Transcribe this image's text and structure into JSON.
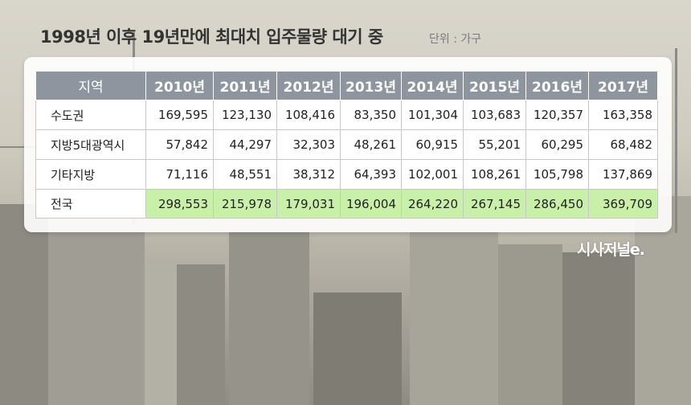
{
  "header": {
    "title": "1998년 이후 19년만에 최대치 입주물량 대기 중",
    "unit": "단위 : 가구"
  },
  "logo": {
    "text": "시사저널e."
  },
  "chart_data": {
    "type": "table",
    "title": "1998년 이후 19년만에 최대치 입주물량 대기 중",
    "unit_label": "단위 : 가구",
    "corner_header": "지역",
    "columns": [
      "2010년",
      "2011년",
      "2012년",
      "2013년",
      "2014년",
      "2015년",
      "2016년",
      "2017년"
    ],
    "rows": [
      {
        "label": "수도권",
        "values": [
          "169,595",
          "123,130",
          "108,416",
          "83,350",
          "101,304",
          "103,683",
          "120,357",
          "163,358"
        ]
      },
      {
        "label": "지방5대광역시",
        "values": [
          "57,842",
          "44,297",
          "32,303",
          "48,261",
          "60,915",
          "55,201",
          "60,295",
          "68,482"
        ]
      },
      {
        "label": "기타지방",
        "values": [
          "71,116",
          "48,551",
          "38,312",
          "64,393",
          "102,001",
          "108,261",
          "105,798",
          "137,869"
        ]
      },
      {
        "label": "전국",
        "values": [
          "298,553",
          "215,978",
          "179,031",
          "196,004",
          "264,220",
          "267,145",
          "286,450",
          "369,709"
        ]
      }
    ],
    "colors": {
      "header_bg": "#8f959f",
      "total_bg": "#c9f0a8"
    }
  }
}
